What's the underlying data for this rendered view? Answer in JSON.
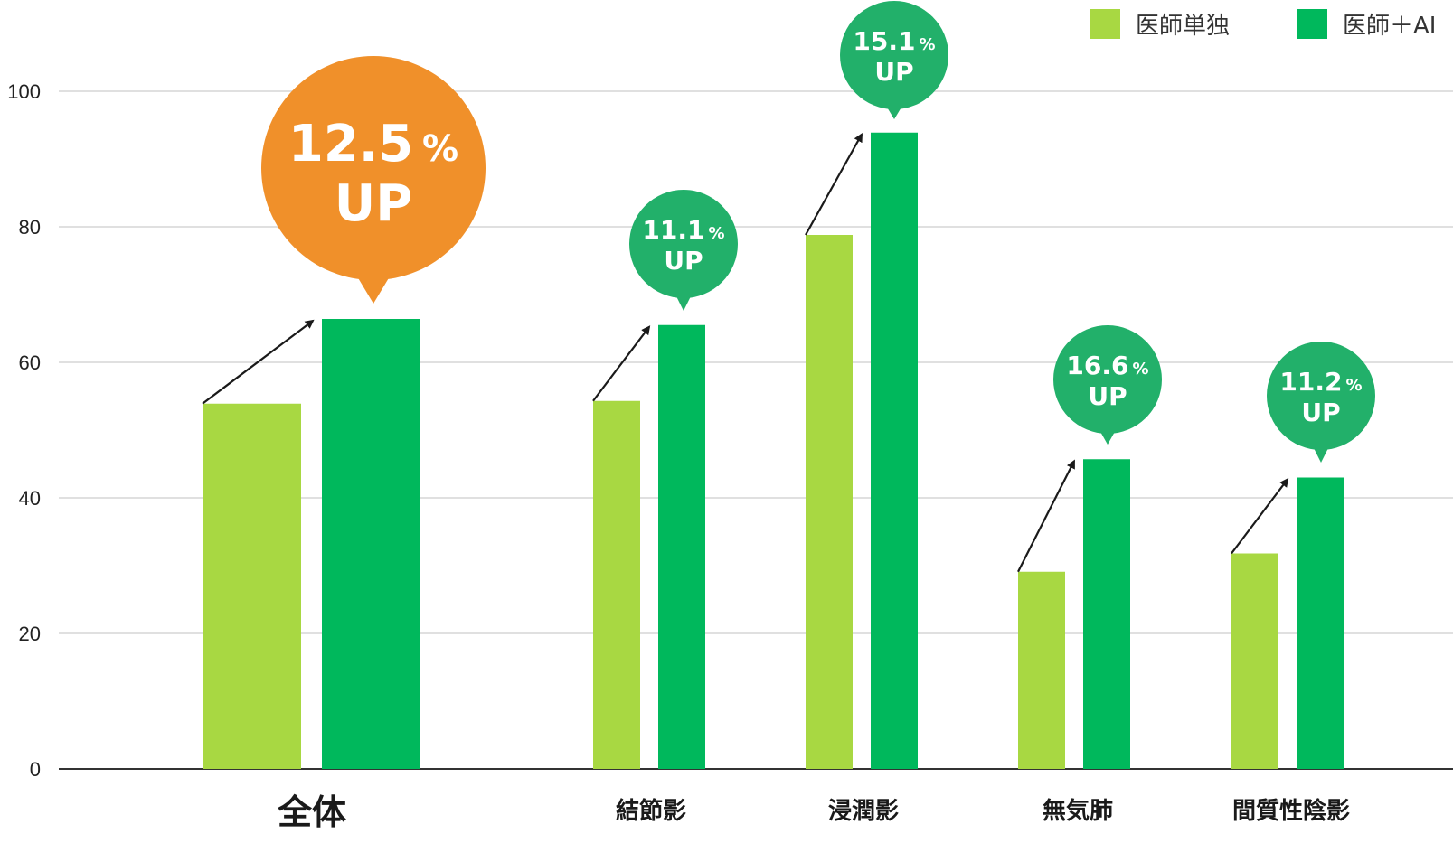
{
  "chart_data": {
    "type": "bar",
    "categories": [
      "全体",
      "結節影",
      "浸潤影",
      "無気肺",
      "間質性陰影"
    ],
    "series": [
      {
        "name": "医師単独",
        "color": "#a8d842",
        "values": [
          53.9,
          54.3,
          78.8,
          29.1,
          31.8
        ]
      },
      {
        "name": "医師＋AI",
        "color": "#00b85c",
        "values": [
          66.4,
          65.5,
          93.9,
          45.7,
          43.0
        ]
      }
    ],
    "ylim": [
      0,
      100
    ],
    "yticks": [
      0,
      20,
      40,
      60,
      80,
      100
    ],
    "grid": true,
    "legend_position": "top-right",
    "annotations": [
      {
        "category": "全体",
        "value": "12.5",
        "unit": "%",
        "label": "UP",
        "color": "#f0902a"
      },
      {
        "category": "結節影",
        "value": "11.1",
        "unit": "%",
        "label": "UP",
        "color": "#22b06a"
      },
      {
        "category": "浸潤影",
        "value": "15.1",
        "unit": "%",
        "label": "UP",
        "color": "#22b06a"
      },
      {
        "category": "無気肺",
        "value": "16.6",
        "unit": "%",
        "label": "UP",
        "color": "#22b06a"
      },
      {
        "category": "間質性陰影",
        "value": "11.2",
        "unit": "%",
        "label": "UP",
        "color": "#22b06a"
      }
    ]
  }
}
